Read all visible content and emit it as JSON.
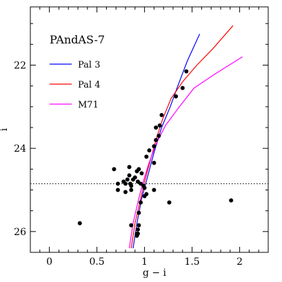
{
  "chart_data": {
    "type": "scatter",
    "title": "PAndAS-7",
    "xlabel": "g − i",
    "ylabel": "i",
    "xlim": [
      -0.2,
      2.3
    ],
    "ylim": [
      26.5,
      20.6
    ],
    "y_inverted": true,
    "x_ticks": [
      0,
      0.5,
      1,
      1.5,
      2
    ],
    "x_tick_labels": [
      "0",
      "0.5",
      "1",
      "1.5",
      "2"
    ],
    "y_ticks": [
      22,
      24,
      26
    ],
    "y_tick_labels": [
      "22",
      "24",
      "26"
    ],
    "reference_line": {
      "y": 24.85,
      "style": "dotted"
    },
    "legend_position": "top-left",
    "series": [
      {
        "name": "Pal 3",
        "kind": "line",
        "color": "#0000ff",
        "x": [
          0.88,
          0.92,
          0.97,
          1.03,
          1.1,
          1.18,
          1.27,
          1.35,
          1.45,
          1.58
        ],
        "y": [
          26.4,
          25.8,
          25.2,
          24.7,
          24.1,
          23.5,
          23.0,
          22.5,
          21.9,
          21.25
        ]
      },
      {
        "name": "Pal 4",
        "kind": "line",
        "color": "#ff0000",
        "x": [
          0.86,
          0.9,
          0.95,
          1.0,
          1.06,
          1.12,
          1.19,
          1.28,
          1.4,
          1.55,
          1.72,
          1.93
        ],
        "y": [
          26.4,
          25.8,
          25.3,
          24.8,
          24.3,
          23.8,
          23.3,
          22.8,
          22.4,
          22.0,
          21.6,
          21.05
        ]
      },
      {
        "name": "M71",
        "kind": "line",
        "color": "#ff00ff",
        "x": [
          0.84,
          0.88,
          0.93,
          0.98,
          1.04,
          1.12,
          1.22,
          1.35,
          1.52,
          1.75,
          2.03
        ],
        "y": [
          26.4,
          25.8,
          25.3,
          24.85,
          24.4,
          23.9,
          23.45,
          23.05,
          22.55,
          22.2,
          21.8
        ]
      },
      {
        "name": "",
        "kind": "points",
        "color": "#000000",
        "x": [
          1.44,
          1.4,
          1.33,
          1.18,
          1.16,
          1.15,
          1.12,
          1.1,
          1.12,
          1.05,
          1.02,
          1.1,
          0.68,
          0.72,
          0.72,
          0.78,
          0.8,
          0.8,
          0.82,
          0.84,
          0.84,
          0.85,
          0.86,
          0.86,
          0.88,
          0.9,
          0.92,
          0.93,
          0.94,
          0.96,
          0.97,
          0.99,
          1.0,
          1.0,
          1.02,
          0.94,
          0.94,
          0.93,
          0.92,
          0.92,
          0.86,
          0.93,
          0.32,
          1.26,
          1.91,
          0.96,
          1.1
        ],
        "y": [
          22.15,
          22.55,
          22.75,
          23.2,
          23.45,
          23.7,
          23.8,
          23.95,
          23.5,
          24.05,
          24.2,
          24.35,
          24.5,
          24.85,
          25.0,
          24.8,
          24.85,
          25.05,
          24.75,
          24.45,
          24.65,
          24.85,
          24.9,
          25.0,
          24.75,
          24.7,
          24.55,
          24.8,
          24.5,
          24.85,
          24.6,
          24.9,
          24.95,
          25.15,
          25.1,
          25.55,
          25.85,
          25.95,
          26.05,
          26.1,
          25.85,
          26.05,
          25.8,
          25.3,
          25.25,
          25.3,
          25.0
        ]
      }
    ]
  }
}
